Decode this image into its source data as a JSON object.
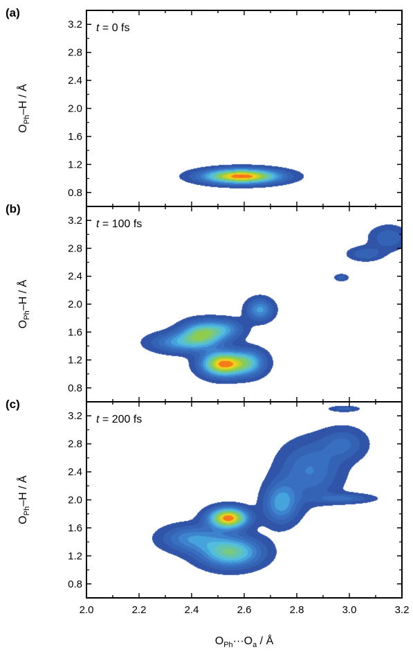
{
  "chart_data": [
    {
      "type": "heatmap",
      "panel": "(a)",
      "annotation": {
        "var": "t",
        "rest": " = 0 fs"
      },
      "ylabel": {
        "base": "O",
        "sub": "Ph",
        "rest": "–H / Å"
      },
      "xlim": [
        2.0,
        3.2
      ],
      "ylim": [
        0.6,
        3.4
      ],
      "yticks": [
        "0.8",
        "1.2",
        "1.6",
        "2.0",
        "2.4",
        "2.8",
        "3.2"
      ],
      "blobs": [
        {
          "x": 2.59,
          "y": 1.03,
          "sx": 0.1,
          "sy": 0.072,
          "w": 1.0
        }
      ]
    },
    {
      "type": "heatmap",
      "panel": "(b)",
      "annotation": {
        "var": "t",
        "rest": " = 100 fs"
      },
      "ylabel": {
        "base": "O",
        "sub": "Ph",
        "rest": "–H / Å"
      },
      "xlim": [
        2.0,
        3.2
      ],
      "ylim": [
        0.6,
        3.4
      ],
      "yticks": [
        "0.8",
        "1.2",
        "1.6",
        "2.0",
        "2.4",
        "2.8",
        "3.2"
      ],
      "blobs": [
        {
          "x": 2.52,
          "y": 1.14,
          "sx": 0.055,
          "sy": 0.12,
          "w": 1.0
        },
        {
          "x": 2.62,
          "y": 1.16,
          "sx": 0.045,
          "sy": 0.13,
          "w": 0.45
        },
        {
          "x": 2.44,
          "y": 1.58,
          "sx": 0.055,
          "sy": 0.12,
          "w": 0.62
        },
        {
          "x": 2.36,
          "y": 1.45,
          "sx": 0.08,
          "sy": 0.1,
          "w": 0.4
        },
        {
          "x": 2.53,
          "y": 1.64,
          "sx": 0.05,
          "sy": 0.1,
          "w": 0.32
        },
        {
          "x": 2.66,
          "y": 1.92,
          "sx": 0.035,
          "sy": 0.11,
          "w": 0.42
        },
        {
          "x": 2.97,
          "y": 2.38,
          "sx": 0.018,
          "sy": 0.035,
          "w": 0.2
        },
        {
          "x": 3.06,
          "y": 2.72,
          "sx": 0.045,
          "sy": 0.07,
          "w": 0.22
        },
        {
          "x": 3.15,
          "y": 2.95,
          "sx": 0.05,
          "sy": 0.12,
          "w": 0.22
        }
      ]
    },
    {
      "type": "heatmap",
      "panel": "(c)",
      "annotation": {
        "var": "t",
        "rest": " = 200 fs"
      },
      "ylabel": {
        "base": "O",
        "sub": "Ph",
        "rest": "–H / Å"
      },
      "xlim": [
        2.0,
        3.2
      ],
      "ylim": [
        0.6,
        3.4
      ],
      "yticks": [
        "0.8",
        "1.2",
        "1.6",
        "2.0",
        "2.4",
        "2.8",
        "3.2"
      ],
      "xticks": [
        "2.0",
        "2.2",
        "2.4",
        "2.6",
        "2.8",
        "3.0",
        "3.2"
      ],
      "xlabel": {
        "base1": "O",
        "sub1": "Ph",
        "mid": "···O",
        "sub2": "a",
        "rest": " / Å"
      },
      "blobs": [
        {
          "x": 2.54,
          "y": 1.74,
          "sx": 0.05,
          "sy": 0.1,
          "w": 1.0
        },
        {
          "x": 2.55,
          "y": 1.25,
          "sx": 0.08,
          "sy": 0.15,
          "w": 0.62
        },
        {
          "x": 2.4,
          "y": 1.45,
          "sx": 0.08,
          "sy": 0.13,
          "w": 0.35
        },
        {
          "x": 2.74,
          "y": 1.95,
          "sx": 0.045,
          "sy": 0.2,
          "w": 0.42
        },
        {
          "x": 2.85,
          "y": 2.42,
          "sx": 0.08,
          "sy": 0.28,
          "w": 0.3
        },
        {
          "x": 2.98,
          "y": 2.8,
          "sx": 0.06,
          "sy": 0.16,
          "w": 0.22
        },
        {
          "x": 2.98,
          "y": 2.02,
          "sx": 0.08,
          "sy": 0.05,
          "w": 0.22
        },
        {
          "x": 2.98,
          "y": 3.3,
          "sx": 0.04,
          "sy": 0.03,
          "w": 0.18
        }
      ]
    }
  ]
}
